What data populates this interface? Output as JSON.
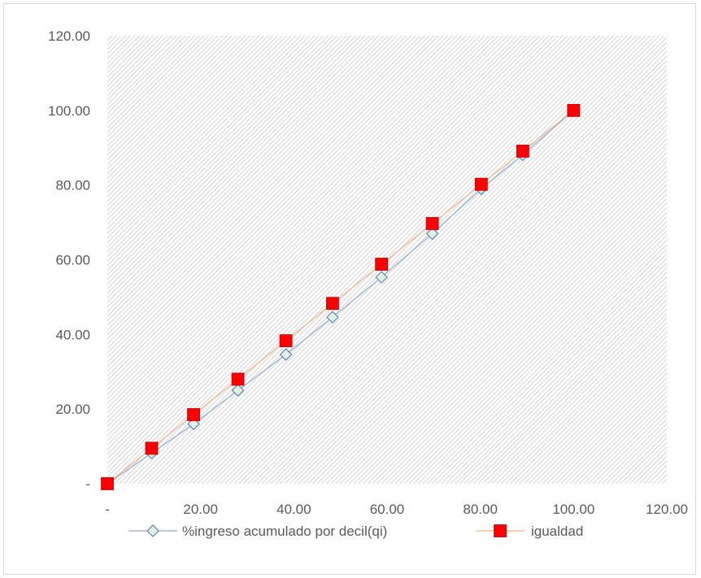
{
  "chart_data": {
    "type": "scatter",
    "title": "",
    "xlabel": "",
    "ylabel": "",
    "xlim": [
      0,
      120
    ],
    "ylim": [
      0,
      120
    ],
    "x_ticks": [
      "-",
      "20.00",
      "40.00",
      "60.00",
      "80.00",
      "100.00",
      "120.00"
    ],
    "y_ticks": [
      "-",
      "20.00",
      "40.00",
      "60.00",
      "80.00",
      "100.00",
      "120.00"
    ],
    "plot_area_fill": "hatched",
    "legend_position": "bottom",
    "series": [
      {
        "name": "%ingreso acumulado por decil(qi)",
        "marker": "diamond",
        "line_color": "#8ea9db",
        "marker_fill": "#e2efda",
        "marker_edge": "#4472c4",
        "x": [
          0,
          9.5,
          18.5,
          28,
          38.3,
          48.3,
          58.8,
          69.7,
          80.2,
          89.1,
          100
        ],
        "y": [
          0,
          8.2,
          16.0,
          25.0,
          34.6,
          44.6,
          55.3,
          67.0,
          79.0,
          88.1,
          100
        ]
      },
      {
        "name": "igualdad",
        "marker": "square",
        "line_color": "#f4b183",
        "marker_fill": "#ff0000",
        "marker_edge": "#c00000",
        "x": [
          0,
          9.5,
          18.5,
          28,
          38.3,
          48.3,
          58.8,
          69.7,
          80.2,
          89.1,
          100
        ],
        "y": [
          0,
          9.5,
          18.5,
          28,
          38.3,
          48.3,
          58.8,
          69.7,
          80.2,
          89.1,
          100
        ]
      }
    ]
  }
}
